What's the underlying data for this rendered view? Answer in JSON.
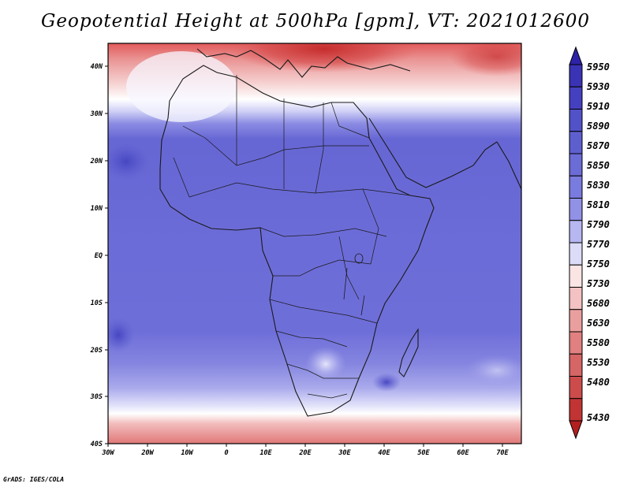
{
  "title": "Geopotential Height at 500hPa [gpm], VT: 2021012600",
  "credit": "GrADS: IGES/COLA",
  "map": {
    "region": "Africa",
    "lon_labels": [
      "30W",
      "20W",
      "10W",
      "0",
      "10E",
      "20E",
      "30E",
      "40E",
      "50E",
      "60E",
      "70E"
    ],
    "lat_labels": [
      "40N",
      "30N",
      "20N",
      "10N",
      "EQ",
      "10S",
      "20S",
      "30S",
      "40S"
    ],
    "lon_range": [
      -30,
      75
    ],
    "lat_range": [
      -40,
      44
    ]
  },
  "colorbar": {
    "levels": [
      "5950",
      "5930",
      "5910",
      "5890",
      "5870",
      "5850",
      "5830",
      "5810",
      "5790",
      "5770",
      "5750",
      "5730",
      "5680",
      "5630",
      "5580",
      "5530",
      "5480",
      "5430"
    ],
    "colors": [
      "#2d22a8",
      "#3a33b5",
      "#4540c0",
      "#5252c8",
      "#5e5fcf",
      "#6b6cd6",
      "#7a7bde",
      "#9191e6",
      "#b6b6f0",
      "#dcdcf8",
      "#fbe4e4",
      "#f4c2c2",
      "#ea9f9f",
      "#e08080",
      "#d66565",
      "#cc4c4c",
      "#c23434",
      "#b31f1f"
    ]
  }
}
